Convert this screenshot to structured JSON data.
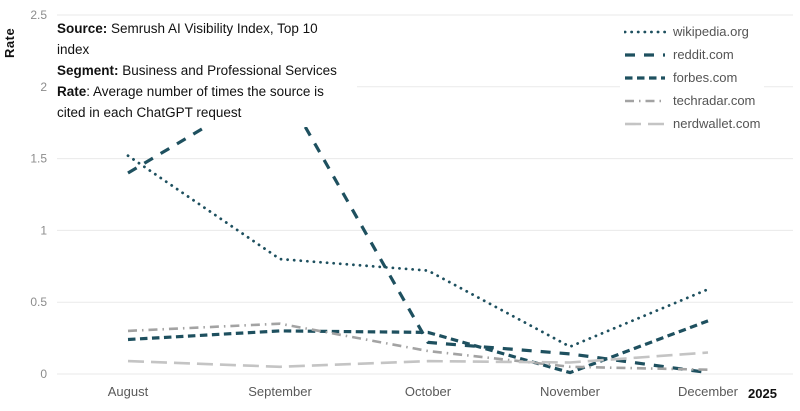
{
  "y_axis_title": "Rate",
  "year_label": "2025",
  "annotation": {
    "lines": [
      {
        "label": "Source:",
        "text": " Semrush AI Visibility Index,  Top 10 index"
      },
      {
        "label": "Segment:",
        "text": " Business and Professional Services"
      },
      {
        "label": "Rate",
        "text": ": Average number of times the source is cited in each ChatGPT request"
      }
    ]
  },
  "chart_data": {
    "type": "line",
    "title": "",
    "xlabel": "",
    "ylabel": "Rate",
    "categories": [
      "August",
      "September",
      "October",
      "November",
      "December"
    ],
    "x_axis_year": "2025",
    "ylim": [
      0,
      2.5
    ],
    "yticks": [
      0,
      0.5,
      1,
      1.5,
      2,
      2.5
    ],
    "grid": true,
    "legend_position": "top-right",
    "series": [
      {
        "name": "wikipedia.org",
        "values": [
          1.52,
          0.8,
          0.72,
          0.19,
          0.59
        ],
        "color": "#1e505f",
        "style": "dotted"
      },
      {
        "name": "reddit.com",
        "values": [
          1.4,
          2.03,
          0.22,
          0.14,
          0.01
        ],
        "color": "#1e505f",
        "style": "long-dash"
      },
      {
        "name": "forbes.com",
        "values": [
          0.24,
          0.3,
          0.29,
          0.01,
          0.37
        ],
        "color": "#1e505f",
        "style": "dash"
      },
      {
        "name": "techradar.com",
        "values": [
          0.3,
          0.35,
          0.16,
          0.05,
          0.03
        ],
        "color": "#a3a3a3",
        "style": "dash-dot"
      },
      {
        "name": "nerdwallet.com",
        "values": [
          0.09,
          0.05,
          0.09,
          0.08,
          0.15
        ],
        "color": "#c4c4c4",
        "style": "long-dash-light"
      }
    ],
    "style_map": {
      "dotted": {
        "dasharray": "0.1 6.5",
        "width": 2.8,
        "linecap": "round"
      },
      "long-dash": {
        "dasharray": "10 9",
        "width": 3.2,
        "linecap": "butt"
      },
      "dash": {
        "dasharray": "7.5 4.5",
        "width": 3.2,
        "linecap": "butt"
      },
      "dash-dot": {
        "dasharray": "9 5 1.5 5",
        "width": 2.6,
        "linecap": "butt"
      },
      "long-dash-light": {
        "dasharray": "16 7",
        "width": 2.6,
        "linecap": "butt"
      }
    }
  }
}
